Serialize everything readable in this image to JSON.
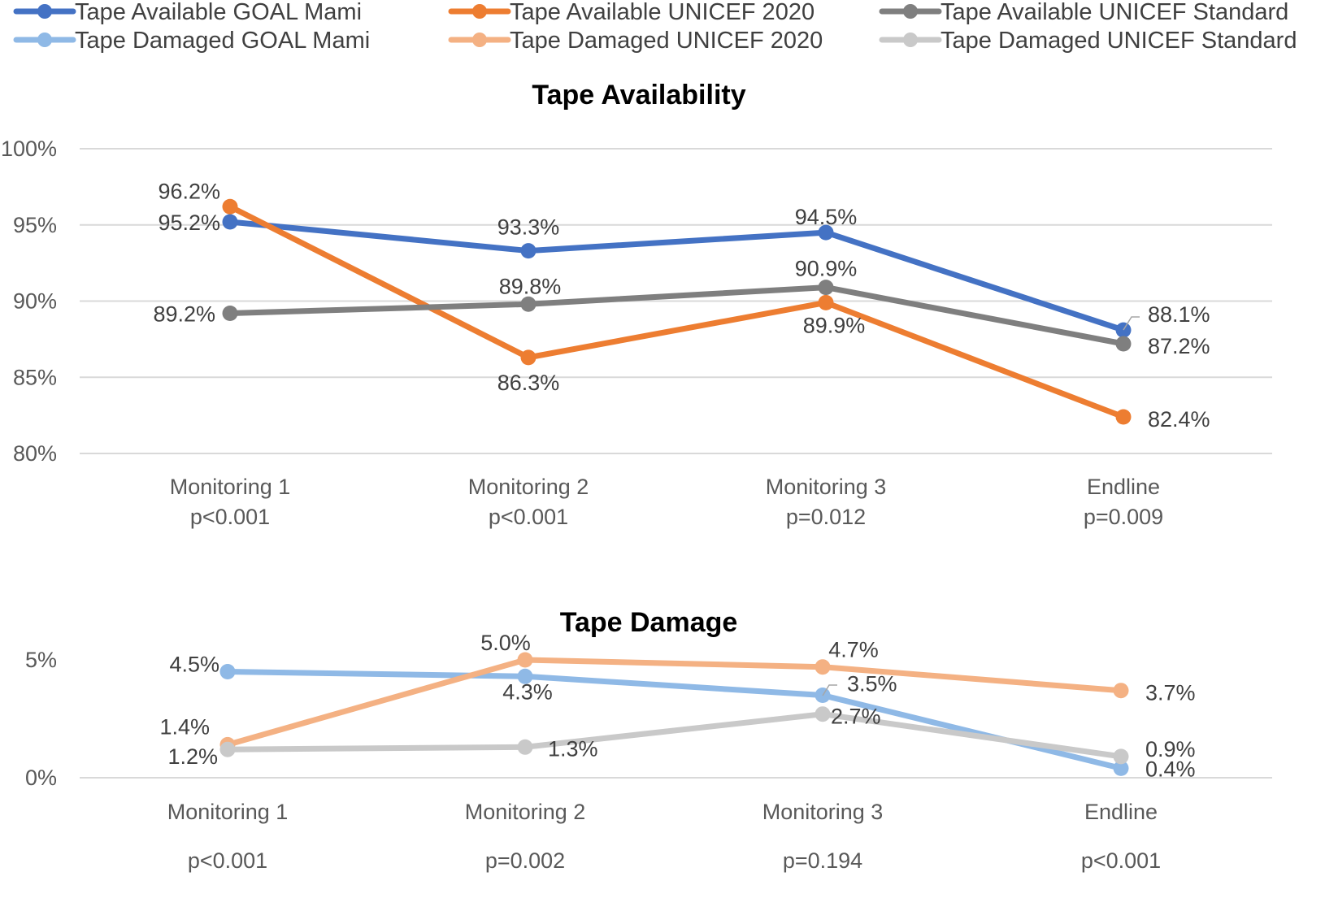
{
  "colors": {
    "available_goal": "#4472C4",
    "available_unicef2020": "#ED7D31",
    "available_standard": "#7F7F7F",
    "damaged_goal": "#8FB9E6",
    "damaged_unicef2020": "#F4B183",
    "damaged_standard": "#C9C9C9"
  },
  "legend": [
    {
      "label": "Tape Available GOAL Mami",
      "color": "#4472C4"
    },
    {
      "label": "Tape Available UNICEF 2020",
      "color": "#ED7D31"
    },
    {
      "label": "Tape Available UNICEF Standard",
      "color": "#7F7F7F"
    },
    {
      "label": "Tape Damaged GOAL Mami",
      "color": "#8FB9E6"
    },
    {
      "label": "Tape Damaged UNICEF 2020",
      "color": "#F4B183"
    },
    {
      "label": "Tape Damaged UNICEF Standard",
      "color": "#C9C9C9"
    }
  ],
  "chart_data": [
    {
      "type": "line",
      "title": "Tape Availability",
      "categories": [
        "Monitoring 1",
        "Monitoring 2",
        "Monitoring 3",
        "Endline"
      ],
      "category_pvalues": [
        "p<0.001",
        "p<0.001",
        "p=0.012",
        "p=0.009"
      ],
      "ylim": [
        80,
        100
      ],
      "yticks": [
        80,
        85,
        90,
        95,
        100
      ],
      "ytick_labels": [
        "80%",
        "85%",
        "90%",
        "95%",
        "100%"
      ],
      "grid": true,
      "series": [
        {
          "name": "Tape Available GOAL Mami",
          "color": "#4472C4",
          "values": [
            95.2,
            93.3,
            94.5,
            88.1
          ],
          "labels": [
            "95.2%",
            "93.3%",
            "94.5%",
            "88.1%"
          ]
        },
        {
          "name": "Tape Available UNICEF 2020",
          "color": "#ED7D31",
          "values": [
            96.2,
            86.3,
            89.9,
            82.4
          ],
          "labels": [
            "96.2%",
            "86.3%",
            "89.9%",
            "82.4%"
          ]
        },
        {
          "name": "Tape Available UNICEF Standard",
          "color": "#7F7F7F",
          "values": [
            89.2,
            89.8,
            90.9,
            87.2
          ],
          "labels": [
            "89.2%",
            "89.8%",
            "90.9%",
            "87.2%"
          ]
        }
      ]
    },
    {
      "type": "line",
      "title": "Tape Damage",
      "categories": [
        "Monitoring 1",
        "Monitoring 2",
        "Monitoring 3",
        "Endline"
      ],
      "category_pvalues": [
        "p<0.001",
        "p=0.002",
        "p=0.194",
        "p<0.001"
      ],
      "ylim": [
        0,
        5
      ],
      "yticks": [
        0,
        5
      ],
      "ytick_labels": [
        "0%",
        "5%"
      ],
      "grid": false,
      "series": [
        {
          "name": "Tape Damaged GOAL Mami",
          "color": "#8FB9E6",
          "values": [
            4.5,
            4.3,
            3.5,
            0.4
          ],
          "labels": [
            "4.5%",
            "4.3%",
            "3.5%",
            "0.4%"
          ]
        },
        {
          "name": "Tape Damaged UNICEF 2020",
          "color": "#F4B183",
          "values": [
            1.4,
            5.0,
            4.7,
            3.7
          ],
          "labels": [
            "1.4%",
            "5.0%",
            "4.7%",
            "3.7%"
          ]
        },
        {
          "name": "Tape Damaged UNICEF Standard",
          "color": "#C9C9C9",
          "values": [
            1.2,
            1.3,
            2.7,
            0.9
          ],
          "labels": [
            "1.2%",
            "1.3%",
            "2.7%",
            "0.9%"
          ]
        }
      ]
    }
  ]
}
